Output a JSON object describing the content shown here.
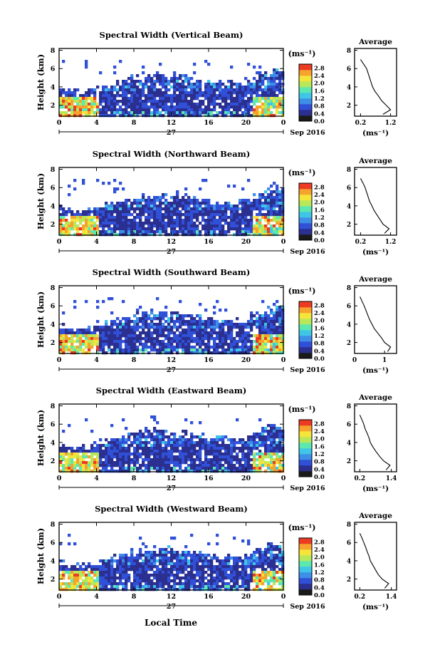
{
  "figure": {
    "date_label": "Sep 2016",
    "day_label": "27",
    "xlabel": "Local Time"
  },
  "colorbar": {
    "unit": "(ms⁻¹)",
    "colors": [
      "#1a1a1a",
      "#2b2f8f",
      "#3050d8",
      "#3d8fe8",
      "#3fc6e6",
      "#5de8b0",
      "#b8e85a",
      "#f5e43a",
      "#f7a22c",
      "#ec3b22"
    ]
  },
  "chart_data": [
    {
      "type": "heatmap",
      "title": "Spectral Width (Vertical Beam)",
      "ylabel": "Height (km)",
      "x_ticks": [
        "0",
        "4",
        "8",
        "12",
        "16",
        "20",
        "0"
      ],
      "x_range_hours": [
        0,
        24
      ],
      "y_ticks": [
        "2",
        "4",
        "6",
        "8"
      ],
      "y_range_km": [
        0.8,
        8.2
      ],
      "colorbar_ticks": [
        "0.0",
        "0.4",
        "0.8",
        "1.2",
        "1.6",
        "2.0",
        "2.4",
        "2.8"
      ],
      "colorbar_range": [
        0.0,
        3.0
      ],
      "profile": {
        "title": "Average",
        "xlabel": "(ms⁻¹)",
        "x_ticks": [
          "0.2",
          "1.2"
        ],
        "x_range": [
          0.0,
          1.4
        ],
        "y_ticks": [
          "2",
          "4",
          "6",
          "8"
        ],
        "y_range": [
          0.8,
          8.2
        ],
        "heights": [
          1.0,
          1.5,
          2.0,
          2.5,
          3.0,
          3.5,
          4.0,
          4.5,
          5.0,
          5.5,
          6.0,
          6.5,
          7.0
        ],
        "values": [
          0.95,
          1.2,
          1.05,
          0.9,
          0.8,
          0.68,
          0.6,
          0.55,
          0.5,
          0.45,
          0.4,
          0.3,
          0.2
        ]
      }
    },
    {
      "type": "heatmap",
      "title": "Spectral Width (Northward Beam)",
      "ylabel": "Height (km)",
      "x_ticks": [
        "0",
        "4",
        "8",
        "12",
        "16",
        "20",
        "0"
      ],
      "x_range_hours": [
        0,
        24
      ],
      "y_ticks": [
        "2",
        "4",
        "6",
        "8"
      ],
      "y_range_km": [
        0.8,
        8.2
      ],
      "colorbar_ticks": [
        "0.0",
        "0.4",
        "0.8",
        "1.2",
        "1.6",
        "2.0",
        "2.4",
        "2.8"
      ],
      "colorbar_range": [
        0.0,
        3.0
      ],
      "profile": {
        "title": "Average",
        "xlabel": "(ms⁻¹)",
        "x_ticks": [
          "0.2",
          "1.2"
        ],
        "x_range": [
          0.0,
          1.4
        ],
        "y_ticks": [
          "2",
          "4",
          "6",
          "8"
        ],
        "y_range": [
          0.8,
          8.2
        ],
        "heights": [
          1.0,
          1.5,
          2.0,
          2.5,
          3.0,
          3.5,
          4.0,
          4.5,
          5.0,
          5.5,
          6.0,
          6.5,
          7.0
        ],
        "values": [
          1.0,
          1.15,
          0.95,
          0.85,
          0.75,
          0.65,
          0.58,
          0.5,
          0.45,
          0.4,
          0.35,
          0.28,
          0.2
        ]
      }
    },
    {
      "type": "heatmap",
      "title": "Spectral Width (Southward Beam)",
      "ylabel": "Height (km)",
      "x_ticks": [
        "0",
        "4",
        "8",
        "12",
        "16",
        "20",
        "0"
      ],
      "x_range_hours": [
        0,
        24
      ],
      "y_ticks": [
        "2",
        "4",
        "6",
        "8"
      ],
      "y_range_km": [
        0.8,
        8.2
      ],
      "colorbar_ticks": [
        "0.0",
        "0.4",
        "0.8",
        "1.2",
        "1.6",
        "2.0",
        "2.4",
        "2.8"
      ],
      "colorbar_range": [
        0.0,
        3.0
      ],
      "profile": {
        "title": "Average",
        "xlabel": "(ms⁻¹)",
        "x_ticks": [
          "0",
          "1"
        ],
        "x_range": [
          0.0,
          1.4
        ],
        "y_ticks": [
          "2",
          "4",
          "6",
          "8"
        ],
        "y_range": [
          0.8,
          8.2
        ],
        "heights": [
          1.0,
          1.5,
          2.0,
          2.5,
          3.0,
          3.5,
          4.0,
          4.5,
          5.0,
          5.5,
          6.0,
          6.5,
          7.0
        ],
        "values": [
          1.1,
          1.2,
          1.0,
          0.9,
          0.78,
          0.66,
          0.58,
          0.5,
          0.44,
          0.38,
          0.32,
          0.25,
          0.18
        ]
      }
    },
    {
      "type": "heatmap",
      "title": "Spectral Width (Eastward Beam)",
      "ylabel": "Height (km)",
      "x_ticks": [
        "0",
        "4",
        "8",
        "12",
        "16",
        "20",
        "0"
      ],
      "x_range_hours": [
        0,
        24
      ],
      "y_ticks": [
        "2",
        "4",
        "6",
        "8"
      ],
      "y_range_km": [
        0.8,
        8.2
      ],
      "colorbar_ticks": [
        "0.0",
        "0.4",
        "0.8",
        "1.2",
        "1.6",
        "2.0",
        "2.4",
        "2.8"
      ],
      "colorbar_range": [
        0.0,
        3.0
      ],
      "profile": {
        "title": "Average",
        "xlabel": "(ms⁻¹)",
        "x_ticks": [
          "0.2",
          "1.4"
        ],
        "x_range": [
          0.0,
          1.6
        ],
        "y_ticks": [
          "2",
          "4",
          "6",
          "8"
        ],
        "y_range": [
          0.8,
          8.2
        ],
        "heights": [
          1.0,
          1.5,
          2.0,
          2.5,
          3.0,
          3.5,
          4.0,
          4.5,
          5.0,
          5.5,
          6.0,
          6.5,
          7.0
        ],
        "values": [
          1.2,
          1.35,
          1.1,
          0.95,
          0.82,
          0.7,
          0.6,
          0.55,
          0.48,
          0.4,
          0.35,
          0.28,
          0.2
        ]
      }
    },
    {
      "type": "heatmap",
      "title": "Spectral Width (Westward Beam)",
      "ylabel": "Height (km)",
      "x_ticks": [
        "0",
        "4",
        "8",
        "12",
        "16",
        "20",
        "0"
      ],
      "x_range_hours": [
        0,
        24
      ],
      "y_ticks": [
        "2",
        "4",
        "6",
        "8"
      ],
      "y_range_km": [
        0.8,
        8.2
      ],
      "colorbar_ticks": [
        "0.0",
        "0.4",
        "0.8",
        "1.2",
        "1.6",
        "2.0",
        "2.4",
        "2.8"
      ],
      "colorbar_range": [
        0.0,
        3.0
      ],
      "profile": {
        "title": "Average",
        "xlabel": "(ms⁻¹)",
        "x_ticks": [
          "0.2",
          "1.4"
        ],
        "x_range": [
          0.0,
          1.6
        ],
        "y_ticks": [
          "2",
          "4",
          "6",
          "8"
        ],
        "y_range": [
          0.8,
          8.2
        ],
        "heights": [
          1.0,
          1.5,
          2.0,
          2.5,
          3.0,
          3.5,
          4.0,
          4.5,
          5.0,
          5.5,
          6.0,
          6.5,
          7.0
        ],
        "values": [
          1.15,
          1.3,
          1.05,
          0.9,
          0.8,
          0.7,
          0.6,
          0.55,
          0.48,
          0.42,
          0.35,
          0.28,
          0.2
        ]
      }
    }
  ]
}
